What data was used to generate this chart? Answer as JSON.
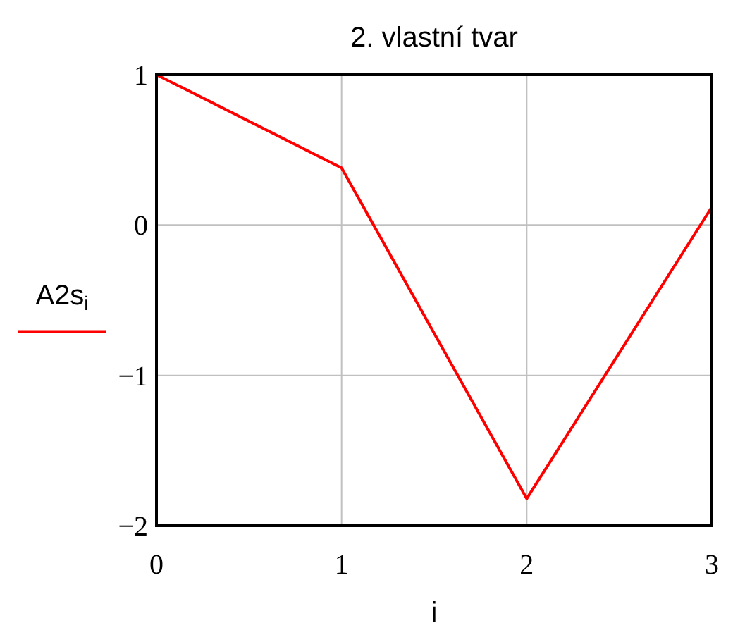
{
  "chart_data": {
    "type": "line",
    "title": "2. vlastní tvar",
    "xlabel": "i",
    "x": [
      0,
      1,
      2,
      3
    ],
    "series": [
      {
        "name": "A2s$_{i}$",
        "color": "#ff0000",
        "values": [
          1,
          0.38,
          -1.82,
          0.12
        ]
      }
    ],
    "xlim": [
      0,
      3
    ],
    "ylim": [
      -2,
      1
    ],
    "xticks": [
      0,
      1,
      2,
      3
    ],
    "yticks": [
      {
        "value": -2,
        "label": "−2"
      },
      {
        "value": -1,
        "label": "−1"
      },
      0,
      1
    ],
    "grid": true,
    "legend": "left"
  }
}
